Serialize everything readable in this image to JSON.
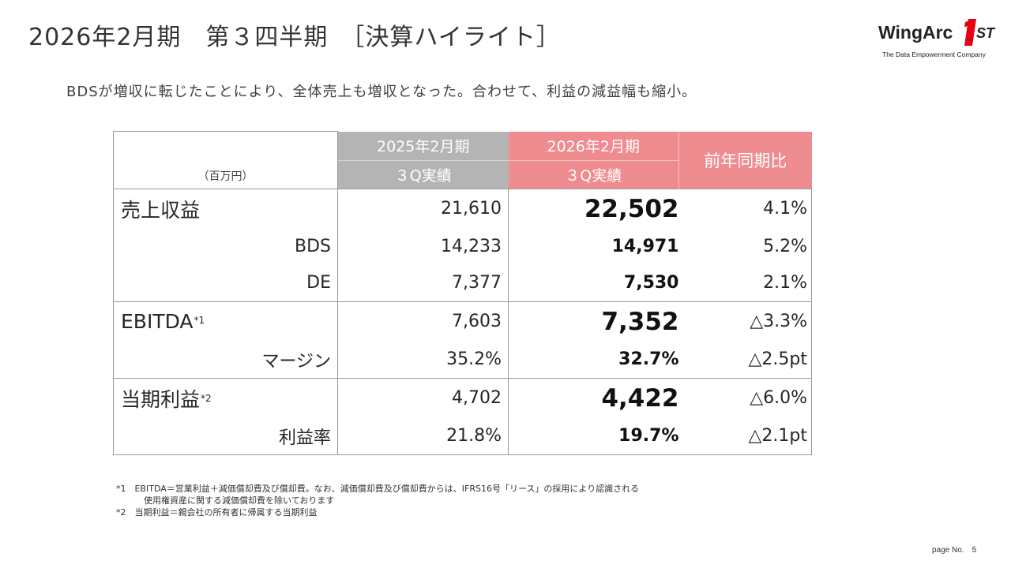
{
  "header": {
    "title": "2026年2月期　第３四半期　［決算ハイライト］",
    "logo_word": "WingArc",
    "logo_suffix": "ST",
    "logo_tagline": "The Data Empowerment Company"
  },
  "subtitle": "BDSが増収に転じたことにより、全体売上も増収となった。合わせて、利益の減益幅も縮小。",
  "table": {
    "unit": "（百万円）",
    "prev_period_line1": "2025年2月期",
    "prev_period_line2": "３Q実績",
    "cur_period_line1": "2026年2月期",
    "cur_period_line2": "３Q実績",
    "yoy_header": "前年同期比",
    "rows": [
      {
        "label": "売上収益",
        "note": "",
        "prev": "21,610",
        "cur": "22,502",
        "yoy": "4.1%"
      },
      {
        "label": "BDS",
        "note": "",
        "prev": "14,233",
        "cur": "14,971",
        "yoy": "5.2%"
      },
      {
        "label": "DE",
        "note": "",
        "prev": "7,377",
        "cur": "7,530",
        "yoy": "2.1%"
      },
      {
        "label": "EBITDA",
        "note": "*1",
        "prev": "7,603",
        "cur": "7,352",
        "yoy": "△3.3%"
      },
      {
        "label": "マージン",
        "note": "",
        "prev": "35.2%",
        "cur": "32.7%",
        "yoy": "△2.5pt"
      },
      {
        "label": "当期利益",
        "note": "*2",
        "prev": "4,702",
        "cur": "4,422",
        "yoy": "△6.0%"
      },
      {
        "label": "利益率",
        "note": "",
        "prev": "21.8%",
        "cur": "19.7%",
        "yoy": "△2.1pt"
      }
    ]
  },
  "footnotes": {
    "n1_line1": "*1　EBITDA＝営業利益＋減価償却費及び償却費。なお、減価償却費及び償却費からは、IFRS16号「リース」の採用により認識される",
    "n1_line2": "使用権資産に関する減価償却費を除いております",
    "n2": "*2　当期利益＝親会社の所有者に帰属する当期利益"
  },
  "page": {
    "label": "page No.",
    "number": "5"
  },
  "colors": {
    "prev_header_bg": "#b4b4b4",
    "cur_header_bg": "#ef8c90",
    "logo_accent": "#e60012"
  }
}
